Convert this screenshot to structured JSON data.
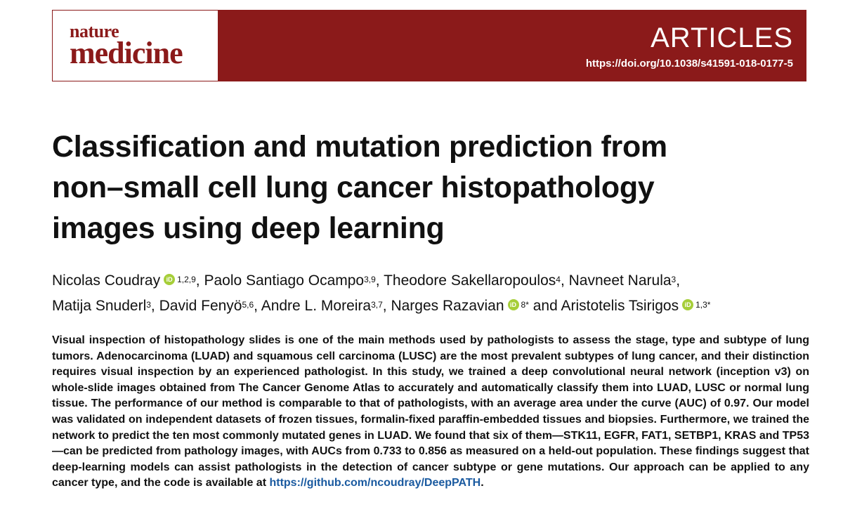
{
  "header": {
    "journal_top": "nature",
    "journal_bottom": "medicine",
    "section": "ARTICLES",
    "doi": "https://doi.org/10.1038/s41591-018-0177-5"
  },
  "title": {
    "line1": "Classification and mutation prediction from",
    "line2": "non–small cell lung cancer histopathology",
    "line3": "images using deep learning"
  },
  "authors": [
    {
      "name": "Nicolas Coudray",
      "orcid": true,
      "sup": "1,2,9",
      "sep": ", "
    },
    {
      "name": "Paolo Santiago Ocampo",
      "orcid": false,
      "sup": "3,9",
      "sep": ", "
    },
    {
      "name": "Theodore Sakellaropoulos",
      "orcid": false,
      "sup": "4",
      "sep": ", "
    },
    {
      "name": "Navneet Narula",
      "orcid": false,
      "sup": "3",
      "sep": ","
    },
    {
      "name": "Matija Snuderl",
      "orcid": false,
      "sup": "3",
      "sep": ", "
    },
    {
      "name": "David Fenyö",
      "orcid": false,
      "sup": "5,6",
      "sep": ", "
    },
    {
      "name": "Andre L. Moreira",
      "orcid": false,
      "sup": "3,7",
      "sep": ", "
    },
    {
      "name": "Narges Razavian",
      "orcid": true,
      "sup": "8*",
      "sep": " and "
    },
    {
      "name": "Aristotelis Tsirigos",
      "orcid": true,
      "sup": "1,3*",
      "sep": ""
    }
  ],
  "orcid_icon_text": "iD",
  "abstract": {
    "text": "Visual inspection of histopathology slides is one of the main methods used by pathologists to assess the stage, type and subtype of lung tumors. Adenocarcinoma (LUAD) and squamous cell carcinoma (LUSC) are the most prevalent subtypes of lung cancer, and their distinction requires visual inspection by an experienced pathologist. In this study, we trained a deep convolutional neural network (inception v3) on whole-slide images obtained from The Cancer Genome Atlas to accurately and automatically classify them into LUAD, LUSC or normal lung tissue. The performance of our method is comparable to that of pathologists, with an average area under the curve (AUC) of 0.97. Our model was validated on independent datasets of frozen tissues, formalin-fixed paraffin-embedded tissues and biopsies. Furthermore, we trained the network to predict the ten most commonly mutated genes in LUAD. We found that six of them—STK11, EGFR, FAT1, SETBP1, KRAS and TP53—can be predicted from pathology images, with AUCs from 0.733 to 0.856 as measured on a held-out population. These findings suggest that deep-learning models can assist pathologists in the detection of cancer subtype or gene mutations. Our approach can be applied to any cancer type, and the code is available at ",
    "link": "https://github.com/ncoudray/DeepPATH",
    "end": "."
  },
  "colors": {
    "brand": "#8b1a1a",
    "orcid": "#a6ce39",
    "link": "#1a5aa0"
  }
}
